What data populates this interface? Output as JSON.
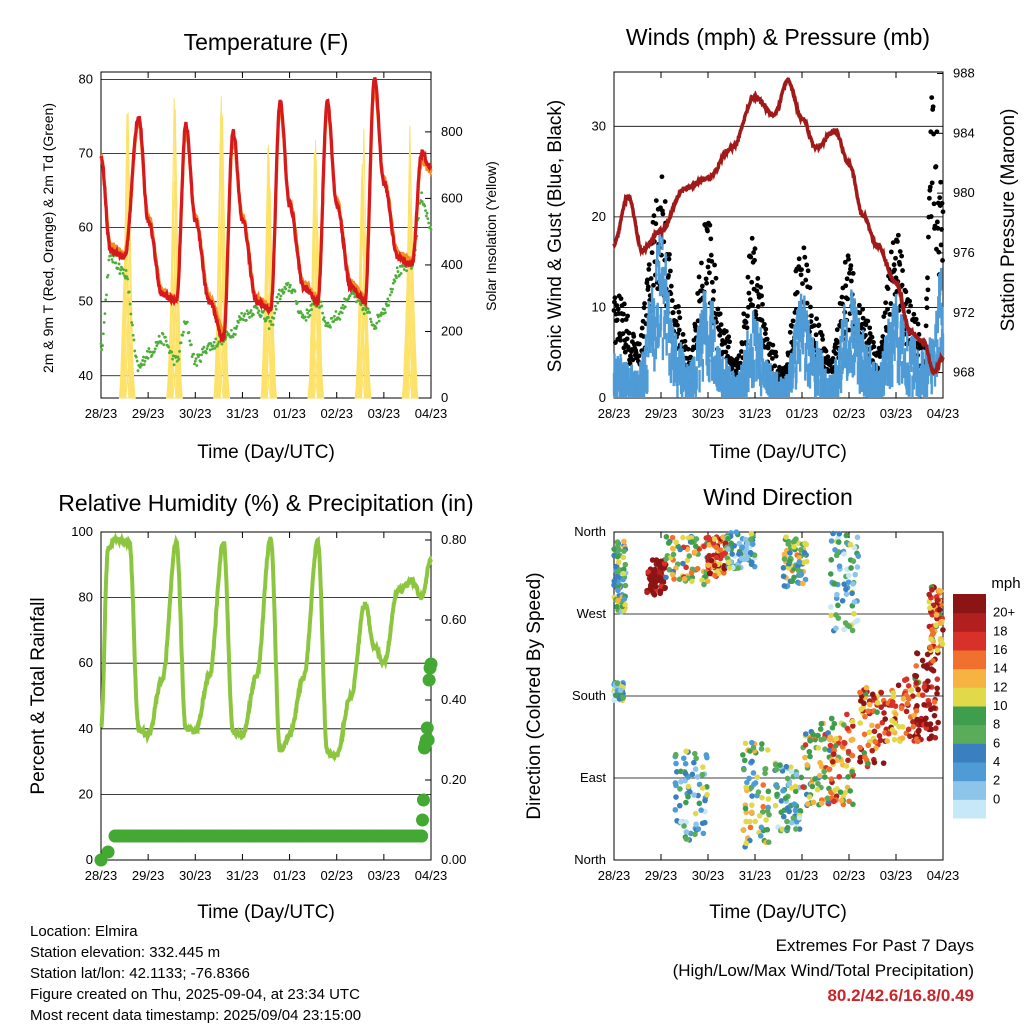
{
  "panels": {
    "temperature": {
      "title": "Temperature (F)",
      "ylabel_left": "2m & 9m T (Red, Orange) & 2m Td (Green)",
      "ylabel_right": "Solar Insolation (Yellow)",
      "xlabel": "Time (Day/UTC)"
    },
    "winds": {
      "title": "Winds (mph) & Pressure (mb)",
      "ylabel_left": "Sonic Wind & Gust (Blue, Black)",
      "ylabel_right": "Station Pressure (Maroon)",
      "xlabel": "Time (Day/UTC)"
    },
    "humidity": {
      "title": "Relative Humidity (%) & Precipitation (in)",
      "ylabel_left": "Percent & Total Rainfall",
      "xlabel": "Time (Day/UTC)"
    },
    "direction": {
      "title": "Wind Direction",
      "ylabel_left": "Direction (Colored By Speed)",
      "xlabel": "Time (Day/UTC)",
      "colorbar_title": "mph"
    }
  },
  "colors": {
    "temp2m": "#d7191c",
    "temp9m": "#f28c28",
    "dewpoint": "#4daf3a",
    "solar": "#fde26a",
    "wind": "#4e9bd6",
    "gust": "#000000",
    "pressure": "#a11a1a",
    "rh": "#8cc63f",
    "precip": "#44a933"
  },
  "extremes": {
    "line1": "Extremes For Past 7 Days",
    "line2": "(High/Low/Max Wind/Total Precipitation)",
    "values": "80.2/42.6/16.8/0.49"
  },
  "info": {
    "location": "Location: Elmira",
    "elevation": "Station elevation: 332.445 m",
    "latlon": "Station lat/lon: 42.1133; -76.8366",
    "created": "Figure created on Thu, 2025-09-04, at 23:34 UTC",
    "recent": "Most recent data timestamp: 2025/09/04 23:15:00"
  },
  "chart_data": [
    {
      "type": "line",
      "title": "Temperature (F)",
      "xlabel": "Time (Day/UTC)",
      "ylabel": "2m & 9m T (Red, Orange) & 2m Td (Green)",
      "ylabel_right": "Solar Insolation (Yellow)",
      "x_ticks": [
        "28/23",
        "29/23",
        "30/23",
        "31/23",
        "01/23",
        "02/23",
        "03/23",
        "04/23"
      ],
      "ylim": [
        37,
        81
      ],
      "y_ticks": [
        40,
        50,
        60,
        70,
        80
      ],
      "y2lim": [
        0,
        980
      ],
      "y2_ticks": [
        0,
        200,
        400,
        600,
        800
      ],
      "grid": true,
      "series": [
        {
          "name": "2m T",
          "x_days": [
            0,
            0.2,
            0.5,
            0.8,
            1.0,
            1.3,
            1.6,
            1.8,
            2.0,
            2.3,
            2.6,
            2.8,
            3.0,
            3.3,
            3.6,
            3.8,
            4.0,
            4.3,
            4.6,
            4.8,
            5.0,
            5.3,
            5.6,
            5.8,
            6.0,
            6.3,
            6.6,
            6.8,
            7.0
          ],
          "values": [
            69.5,
            57,
            56,
            75,
            61,
            51,
            50,
            74,
            61,
            50,
            45,
            73,
            61,
            50,
            49,
            77,
            63,
            52,
            50,
            77,
            63,
            52,
            50,
            80,
            66,
            56,
            55,
            70,
            68
          ]
        },
        {
          "name": "9m T",
          "x_days": [
            0,
            0.2,
            0.5,
            0.8,
            1.0,
            1.3,
            1.6,
            1.8,
            2.0,
            2.3,
            2.6,
            2.8,
            3.0,
            3.3,
            3.6,
            3.8,
            4.0,
            4.3,
            4.6,
            4.8,
            5.0,
            5.3,
            5.6,
            5.8,
            6.0,
            6.3,
            6.6,
            6.8,
            7.0
          ],
          "values": [
            69.5,
            57.5,
            56.5,
            74,
            61.5,
            51.5,
            50.5,
            73,
            61.5,
            50.5,
            46,
            72,
            61.5,
            50.5,
            49.5,
            76,
            63.5,
            52.5,
            50.5,
            76,
            63.5,
            52.5,
            50.5,
            79,
            66.5,
            56.5,
            55.5,
            69,
            67.5
          ]
        },
        {
          "name": "2m Td",
          "x_days": [
            0,
            0.2,
            0.5,
            0.8,
            1.0,
            1.3,
            1.6,
            1.8,
            2.0,
            2.3,
            2.6,
            2.8,
            3.0,
            3.3,
            3.6,
            3.8,
            4.0,
            4.3,
            4.6,
            4.8,
            5.0,
            5.3,
            5.6,
            5.8,
            6.0,
            6.3,
            6.6,
            6.8,
            7.0
          ],
          "values": [
            44,
            56,
            54,
            41,
            43,
            45,
            42,
            47,
            42,
            44,
            45,
            46,
            48,
            49,
            47,
            51,
            52,
            48,
            50,
            47,
            48,
            51,
            49,
            47,
            49,
            54,
            55,
            64,
            60
          ]
        },
        {
          "name": "Solar Insolation",
          "axis": "right",
          "x_days": [
            0.5,
            0.7,
            1.6,
            2.6,
            3.6,
            4.6,
            5.6,
            6.6
          ],
          "values": [
            30,
            950,
            960,
            940,
            910,
            920,
            905,
            900
          ]
        }
      ]
    },
    {
      "type": "line",
      "title": "Winds (mph) & Pressure (mb)",
      "xlabel": "Time (Day/UTC)",
      "ylabel": "Sonic Wind & Gust (Blue, Black)",
      "ylabel_right": "Station Pressure (Maroon)",
      "x_ticks": [
        "28/23",
        "29/23",
        "30/23",
        "31/23",
        "01/23",
        "02/23",
        "03/23",
        "04/23"
      ],
      "ylim": [
        0,
        36
      ],
      "y_ticks": [
        0,
        10,
        20,
        30
      ],
      "y2lim": [
        966.3,
        988.1
      ],
      "y2_ticks": [
        968,
        972,
        976,
        980,
        984,
        988
      ],
      "grid": true,
      "series": [
        {
          "name": "Sonic Wind",
          "x_days": [
            0,
            0.5,
            1.0,
            1.3,
            1.6,
            2.0,
            2.3,
            2.6,
            3.0,
            3.3,
            3.6,
            4.0,
            4.3,
            4.6,
            5.0,
            5.3,
            5.6,
            6.0,
            6.3,
            6.6,
            7.0
          ],
          "values": [
            4,
            3,
            15,
            6,
            3,
            10,
            4,
            2,
            8,
            3,
            2,
            9,
            5,
            2,
            10,
            6,
            3,
            9,
            6,
            4,
            12
          ]
        },
        {
          "name": "Gust",
          "x_days": [
            0,
            0.5,
            1.0,
            1.3,
            1.6,
            2.0,
            2.3,
            2.6,
            3.0,
            3.3,
            3.6,
            4.0,
            4.3,
            4.6,
            5.0,
            5.3,
            5.6,
            6.0,
            6.3,
            6.6,
            6.8,
            7.0
          ],
          "values": [
            12,
            6,
            23,
            10,
            5,
            19,
            8,
            4,
            17,
            6,
            3,
            16,
            8,
            4,
            15,
            9,
            5,
            17,
            10,
            6,
            34,
            21
          ]
        },
        {
          "name": "Station Pressure",
          "axis": "right",
          "x_days": [
            0,
            0.3,
            0.6,
            1.0,
            1.5,
            2.0,
            2.5,
            3.0,
            3.4,
            3.7,
            4.0,
            4.3,
            4.7,
            5.0,
            5.3,
            5.6,
            6.0,
            6.3,
            6.6,
            6.8,
            7.0
          ],
          "values": [
            976.6,
            979.8,
            976.2,
            977.5,
            980.3,
            981,
            983,
            986.4,
            985.2,
            987.5,
            985,
            983,
            984.2,
            982,
            978.5,
            976.5,
            974,
            970.8,
            970,
            968,
            969
          ]
        }
      ]
    },
    {
      "type": "line",
      "title": "Relative Humidity (%) & Precipitation (in)",
      "xlabel": "Time (Day/UTC)",
      "ylabel": "Percent & Total Rainfall",
      "x_ticks": [
        "28/23",
        "29/23",
        "30/23",
        "31/23",
        "01/23",
        "02/23",
        "03/23",
        "04/23"
      ],
      "ylim": [
        0,
        100
      ],
      "y_ticks": [
        0,
        20,
        40,
        60,
        80,
        100
      ],
      "y2lim": [
        0,
        0.82
      ],
      "y2_ticks": [
        "0.00",
        "0.20",
        "0.40",
        "0.60",
        "0.80"
      ],
      "grid": true,
      "series": [
        {
          "name": "Relative Humidity",
          "x_days": [
            0,
            0.15,
            0.3,
            0.6,
            0.8,
            1.0,
            1.3,
            1.6,
            1.8,
            2.0,
            2.3,
            2.6,
            2.8,
            3.0,
            3.3,
            3.6,
            3.8,
            4.0,
            4.3,
            4.6,
            4.8,
            5.0,
            5.3,
            5.6,
            5.8,
            6.0,
            6.3,
            6.6,
            6.8,
            7.0
          ],
          "values": [
            40,
            95,
            98,
            97,
            40,
            38,
            55,
            97,
            40,
            39,
            56,
            97,
            39,
            38,
            56,
            98,
            33,
            38,
            56,
            97,
            33,
            32,
            50,
            78,
            65,
            60,
            82,
            85,
            80,
            92
          ]
        },
        {
          "name": "Total Precipitation",
          "axis": "right",
          "x_days": [
            0,
            0.15,
            0.3,
            6.8,
            6.82,
            6.84,
            6.86,
            6.88,
            6.9,
            6.92,
            6.94,
            6.96,
            6.98,
            7.0
          ],
          "values": [
            0,
            0.02,
            0.06,
            0.06,
            0.1,
            0.15,
            0.28,
            0.29,
            0.3,
            0.33,
            0.3,
            0.45,
            0.48,
            0.49
          ]
        }
      ]
    },
    {
      "type": "scatter",
      "title": "Wind Direction",
      "xlabel": "Time (Day/UTC)",
      "ylabel": "Direction (Colored By Speed)",
      "x_ticks": [
        "28/23",
        "29/23",
        "30/23",
        "31/23",
        "01/23",
        "02/23",
        "03/23",
        "04/23"
      ],
      "y_ticks": [
        "North",
        "East",
        "South",
        "West",
        "North"
      ],
      "ylim": [
        0,
        360
      ],
      "grid": true,
      "colorbar": {
        "title": "mph",
        "labels": [
          "0",
          "2",
          "4",
          "6",
          "8",
          "10",
          "12",
          "14",
          "16",
          "18",
          "20+"
        ],
        "colors": [
          "#c6e8f7",
          "#8cc4ea",
          "#4e9bd6",
          "#3a7fc0",
          "#5aac5a",
          "#3e9e4e",
          "#e2d94a",
          "#f6b342",
          "#f0702e",
          "#d8312a",
          "#b21f1f",
          "#8b1515"
        ]
      },
      "clusters": [
        {
          "day_range": [
            0.0,
            0.25
          ],
          "dir_range": [
            270,
            350
          ],
          "speed": 4
        },
        {
          "day_range": [
            0.0,
            0.2
          ],
          "dir_range": [
            175,
            195
          ],
          "speed": 3
        },
        {
          "day_range": [
            0.7,
            1.1
          ],
          "dir_range": [
            290,
            330
          ],
          "speed": 12
        },
        {
          "day_range": [
            1.1,
            2.0
          ],
          "dir_range": [
            300,
            355
          ],
          "speed": 6
        },
        {
          "day_range": [
            2.0,
            2.4
          ],
          "dir_range": [
            310,
            355
          ],
          "speed": 9
        },
        {
          "day_range": [
            1.3,
            2.0
          ],
          "dir_range": [
            20,
            120
          ],
          "speed": 3
        },
        {
          "day_range": [
            2.4,
            3.0
          ],
          "dir_range": [
            320,
            360
          ],
          "speed": 3
        },
        {
          "day_range": [
            2.7,
            3.3
          ],
          "dir_range": [
            10,
            130
          ],
          "speed": 5
        },
        {
          "day_range": [
            3.4,
            4.0
          ],
          "dir_range": [
            30,
            110
          ],
          "speed": 3
        },
        {
          "day_range": [
            3.6,
            4.1
          ],
          "dir_range": [
            300,
            355
          ],
          "speed": 5
        },
        {
          "day_range": [
            4.0,
            4.6
          ],
          "dir_range": [
            60,
            150
          ],
          "speed": 6
        },
        {
          "day_range": [
            4.6,
            5.1
          ],
          "dir_range": [
            60,
            160
          ],
          "speed": 7
        },
        {
          "day_range": [
            4.6,
            5.2
          ],
          "dir_range": [
            250,
            360
          ],
          "speed": 3
        },
        {
          "day_range": [
            5.2,
            5.8
          ],
          "dir_range": [
            100,
            190
          ],
          "speed": 8
        },
        {
          "day_range": [
            5.8,
            6.5
          ],
          "dir_range": [
            130,
            200
          ],
          "speed": 8
        },
        {
          "day_range": [
            6.4,
            6.9
          ],
          "dir_range": [
            130,
            230
          ],
          "speed": 11
        },
        {
          "day_range": [
            6.7,
            7.0
          ],
          "dir_range": [
            230,
            300
          ],
          "speed": 8
        }
      ]
    }
  ]
}
